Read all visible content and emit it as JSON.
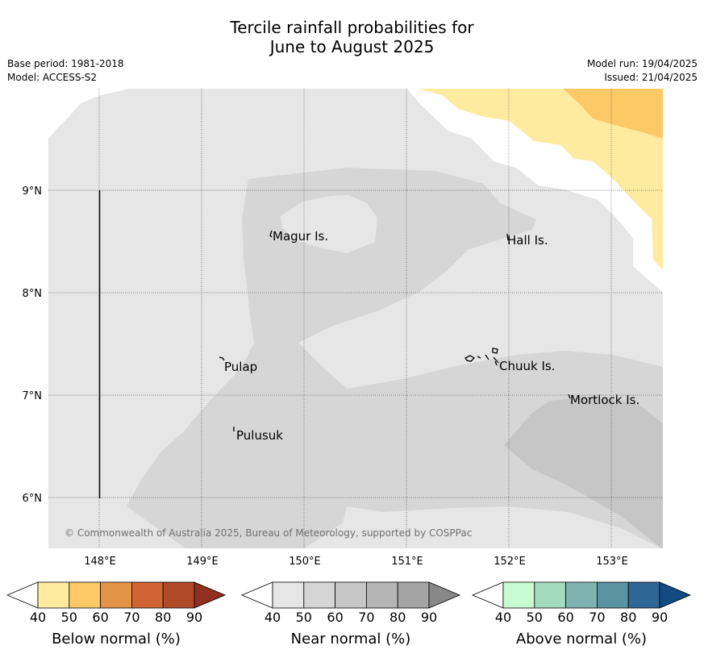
{
  "header": {
    "title_line1": "Tercile rainfall probabilities for",
    "title_line2": "June to August 2025",
    "base_period": "Base period: 1981-2018",
    "model": "Model: ACCESS-S2",
    "model_run": "Model run: 19/04/2025",
    "issued": "Issued: 21/04/2025"
  },
  "map": {
    "lon_ticks": [
      "148°E",
      "149°E",
      "150°E",
      "151°E",
      "152°E",
      "153°E"
    ],
    "lat_ticks": [
      "9°N",
      "8°N",
      "7°N",
      "6°N"
    ],
    "places": [
      "Magur Is.",
      "Hall Is.",
      "Pulap",
      "Chuuk Is.",
      "Mortlock Is.",
      "Pulusuk"
    ],
    "copyright": "© Commonwealth of Australia 2025, Bureau of Meteorology, supported by COSPPac",
    "colors": {
      "below_40_50": "#ffeba0",
      "below_50_60": "#fdc866",
      "near_40_50": "#e6e6e6",
      "near_50_60": "#d6d6d6",
      "near_60_70": "#c6c6c6",
      "land": "#ffffff"
    }
  },
  "colorbars": [
    {
      "caption": "Below normal (%)",
      "ticks": [
        "40",
        "50",
        "60",
        "70",
        "80",
        "90"
      ],
      "colors": [
        "#ffeba0",
        "#fdc866",
        "#e39447",
        "#cf6331",
        "#b14a27",
        "#8f3020"
      ]
    },
    {
      "caption": "Near normal (%)",
      "ticks": [
        "40",
        "50",
        "60",
        "70",
        "80",
        "90"
      ],
      "colors": [
        "#e6e6e6",
        "#d6d6d6",
        "#c6c6c6",
        "#b5b5b5",
        "#a4a4a4",
        "#888888"
      ]
    },
    {
      "caption": "Above normal (%)",
      "ticks": [
        "40",
        "50",
        "60",
        "70",
        "80",
        "90"
      ],
      "colors": [
        "#c7fbd0",
        "#a3dbbf",
        "#7eb3b1",
        "#5a93a2",
        "#306696",
        "#124a82"
      ]
    }
  ]
}
